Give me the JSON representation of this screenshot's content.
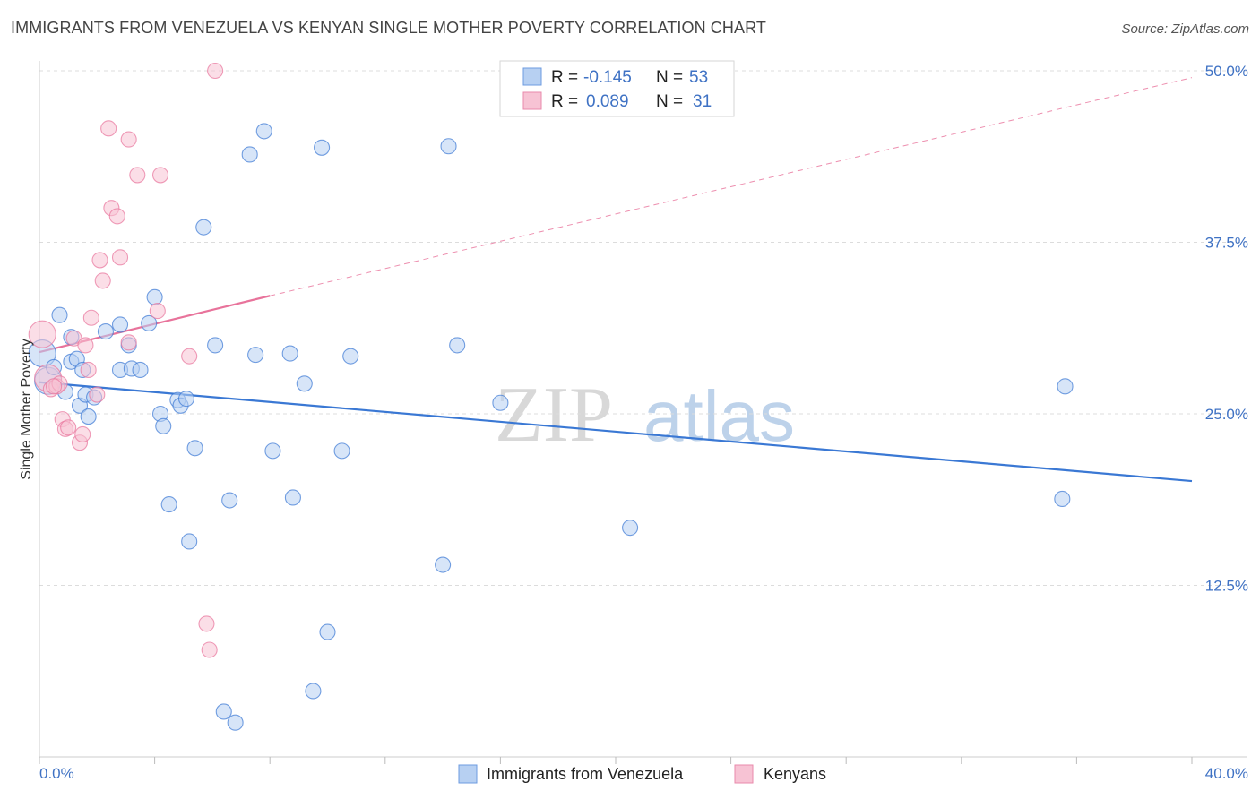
{
  "title": "IMMIGRANTS FROM VENEZUELA VS KENYAN SINGLE MOTHER POVERTY CORRELATION CHART",
  "source": "Source: ZipAtlas.com",
  "watermark": {
    "zip": "ZIP",
    "atlas": "atlas"
  },
  "colors": {
    "blue": "#3a78d4",
    "blue_fill": "#b7d0f2",
    "pink": "#e8739b",
    "pink_fill": "#f7c3d4",
    "grid": "#dddddd",
    "axis_label": "#3f72c4"
  },
  "legend": {
    "rows": [
      {
        "r_label": "R =",
        "r_value": "-0.145",
        "n_label": "N =",
        "n_value": "53"
      },
      {
        "r_label": "R =",
        "r_value": "0.089",
        "n_label": "N =",
        "n_value": "31"
      }
    ]
  },
  "chart_data": {
    "type": "scatter",
    "title": "IMMIGRANTS FROM VENEZUELA VS KENYAN SINGLE MOTHER POVERTY CORRELATION CHART",
    "xlabel": "",
    "ylabel": "Single Mother Poverty",
    "xlim": [
      0,
      40
    ],
    "ylim": [
      0,
      50
    ],
    "x_tick_labels": [
      "0.0%",
      "40.0%"
    ],
    "y_tick_labels": [
      "12.5%",
      "25.0%",
      "37.5%",
      "50.0%"
    ],
    "y_ticks": [
      12.5,
      25,
      37.5,
      50
    ],
    "series": [
      {
        "name": "Immigrants from Venezuela",
        "color": "blue",
        "points": [
          [
            0.1,
            29.4
          ],
          [
            0.3,
            27.4
          ],
          [
            0.5,
            28.4
          ],
          [
            0.7,
            32.2
          ],
          [
            0.9,
            26.6
          ],
          [
            1.1,
            30.6
          ],
          [
            1.1,
            28.8
          ],
          [
            1.3,
            29.0
          ],
          [
            1.4,
            25.6
          ],
          [
            1.5,
            28.2
          ],
          [
            1.6,
            26.4
          ],
          [
            1.7,
            24.8
          ],
          [
            1.9,
            26.2
          ],
          [
            2.3,
            31.0
          ],
          [
            2.8,
            28.2
          ],
          [
            2.8,
            31.5
          ],
          [
            3.1,
            30.0
          ],
          [
            3.2,
            28.3
          ],
          [
            3.5,
            28.2
          ],
          [
            3.8,
            31.6
          ],
          [
            4.0,
            33.5
          ],
          [
            4.2,
            25.0
          ],
          [
            4.3,
            24.1
          ],
          [
            4.5,
            18.4
          ],
          [
            4.8,
            26.0
          ],
          [
            4.9,
            25.6
          ],
          [
            5.1,
            26.1
          ],
          [
            5.2,
            15.7
          ],
          [
            5.4,
            22.5
          ],
          [
            5.7,
            38.6
          ],
          [
            6.1,
            30.0
          ],
          [
            6.4,
            3.3
          ],
          [
            6.6,
            18.7
          ],
          [
            6.8,
            2.5
          ],
          [
            7.3,
            43.9
          ],
          [
            7.5,
            29.3
          ],
          [
            7.8,
            45.6
          ],
          [
            8.1,
            22.3
          ],
          [
            8.7,
            29.4
          ],
          [
            8.8,
            18.9
          ],
          [
            9.2,
            27.2
          ],
          [
            9.5,
            4.8
          ],
          [
            9.8,
            44.4
          ],
          [
            10.0,
            9.1
          ],
          [
            10.5,
            22.3
          ],
          [
            10.8,
            29.2
          ],
          [
            14.0,
            14.0
          ],
          [
            14.2,
            44.5
          ],
          [
            14.5,
            30.0
          ],
          [
            16.0,
            25.8
          ],
          [
            20.5,
            16.7
          ],
          [
            35.5,
            18.8
          ],
          [
            35.6,
            27.0
          ]
        ],
        "trend": {
          "x0": 0,
          "y0": 27.3,
          "x1": 40,
          "y1": 20.1
        }
      },
      {
        "name": "Kenyans",
        "color": "pink",
        "points": [
          [
            0.1,
            30.8
          ],
          [
            0.3,
            27.6
          ],
          [
            0.4,
            26.8
          ],
          [
            0.6,
            27.0
          ],
          [
            0.7,
            27.2
          ],
          [
            0.8,
            24.6
          ],
          [
            0.9,
            23.9
          ],
          [
            1.0,
            24.0
          ],
          [
            1.2,
            30.5
          ],
          [
            1.4,
            22.9
          ],
          [
            1.5,
            23.5
          ],
          [
            1.6,
            30.0
          ],
          [
            1.7,
            28.2
          ],
          [
            1.8,
            32.0
          ],
          [
            2.0,
            26.4
          ],
          [
            2.1,
            36.2
          ],
          [
            2.2,
            34.7
          ],
          [
            2.4,
            45.8
          ],
          [
            2.5,
            40.0
          ],
          [
            2.7,
            39.4
          ],
          [
            2.8,
            36.4
          ],
          [
            3.1,
            30.2
          ],
          [
            3.1,
            45.0
          ],
          [
            3.4,
            42.4
          ],
          [
            4.1,
            32.5
          ],
          [
            4.2,
            42.4
          ],
          [
            5.2,
            29.2
          ],
          [
            5.8,
            9.7
          ],
          [
            5.9,
            7.8
          ],
          [
            6.1,
            50.0
          ],
          [
            0.5,
            27.0
          ]
        ],
        "trend": {
          "x0": 0,
          "y0": 29.5,
          "x1": 8,
          "y1": 33.6
        },
        "trend_extension": {
          "x0": 8,
          "y0": 33.6,
          "x1": 40,
          "y1": 49.5
        }
      }
    ]
  },
  "bottom_legend": [
    {
      "label": "Immigrants from Venezuela",
      "color": "blue"
    },
    {
      "label": "Kenyans",
      "color": "pink"
    }
  ]
}
